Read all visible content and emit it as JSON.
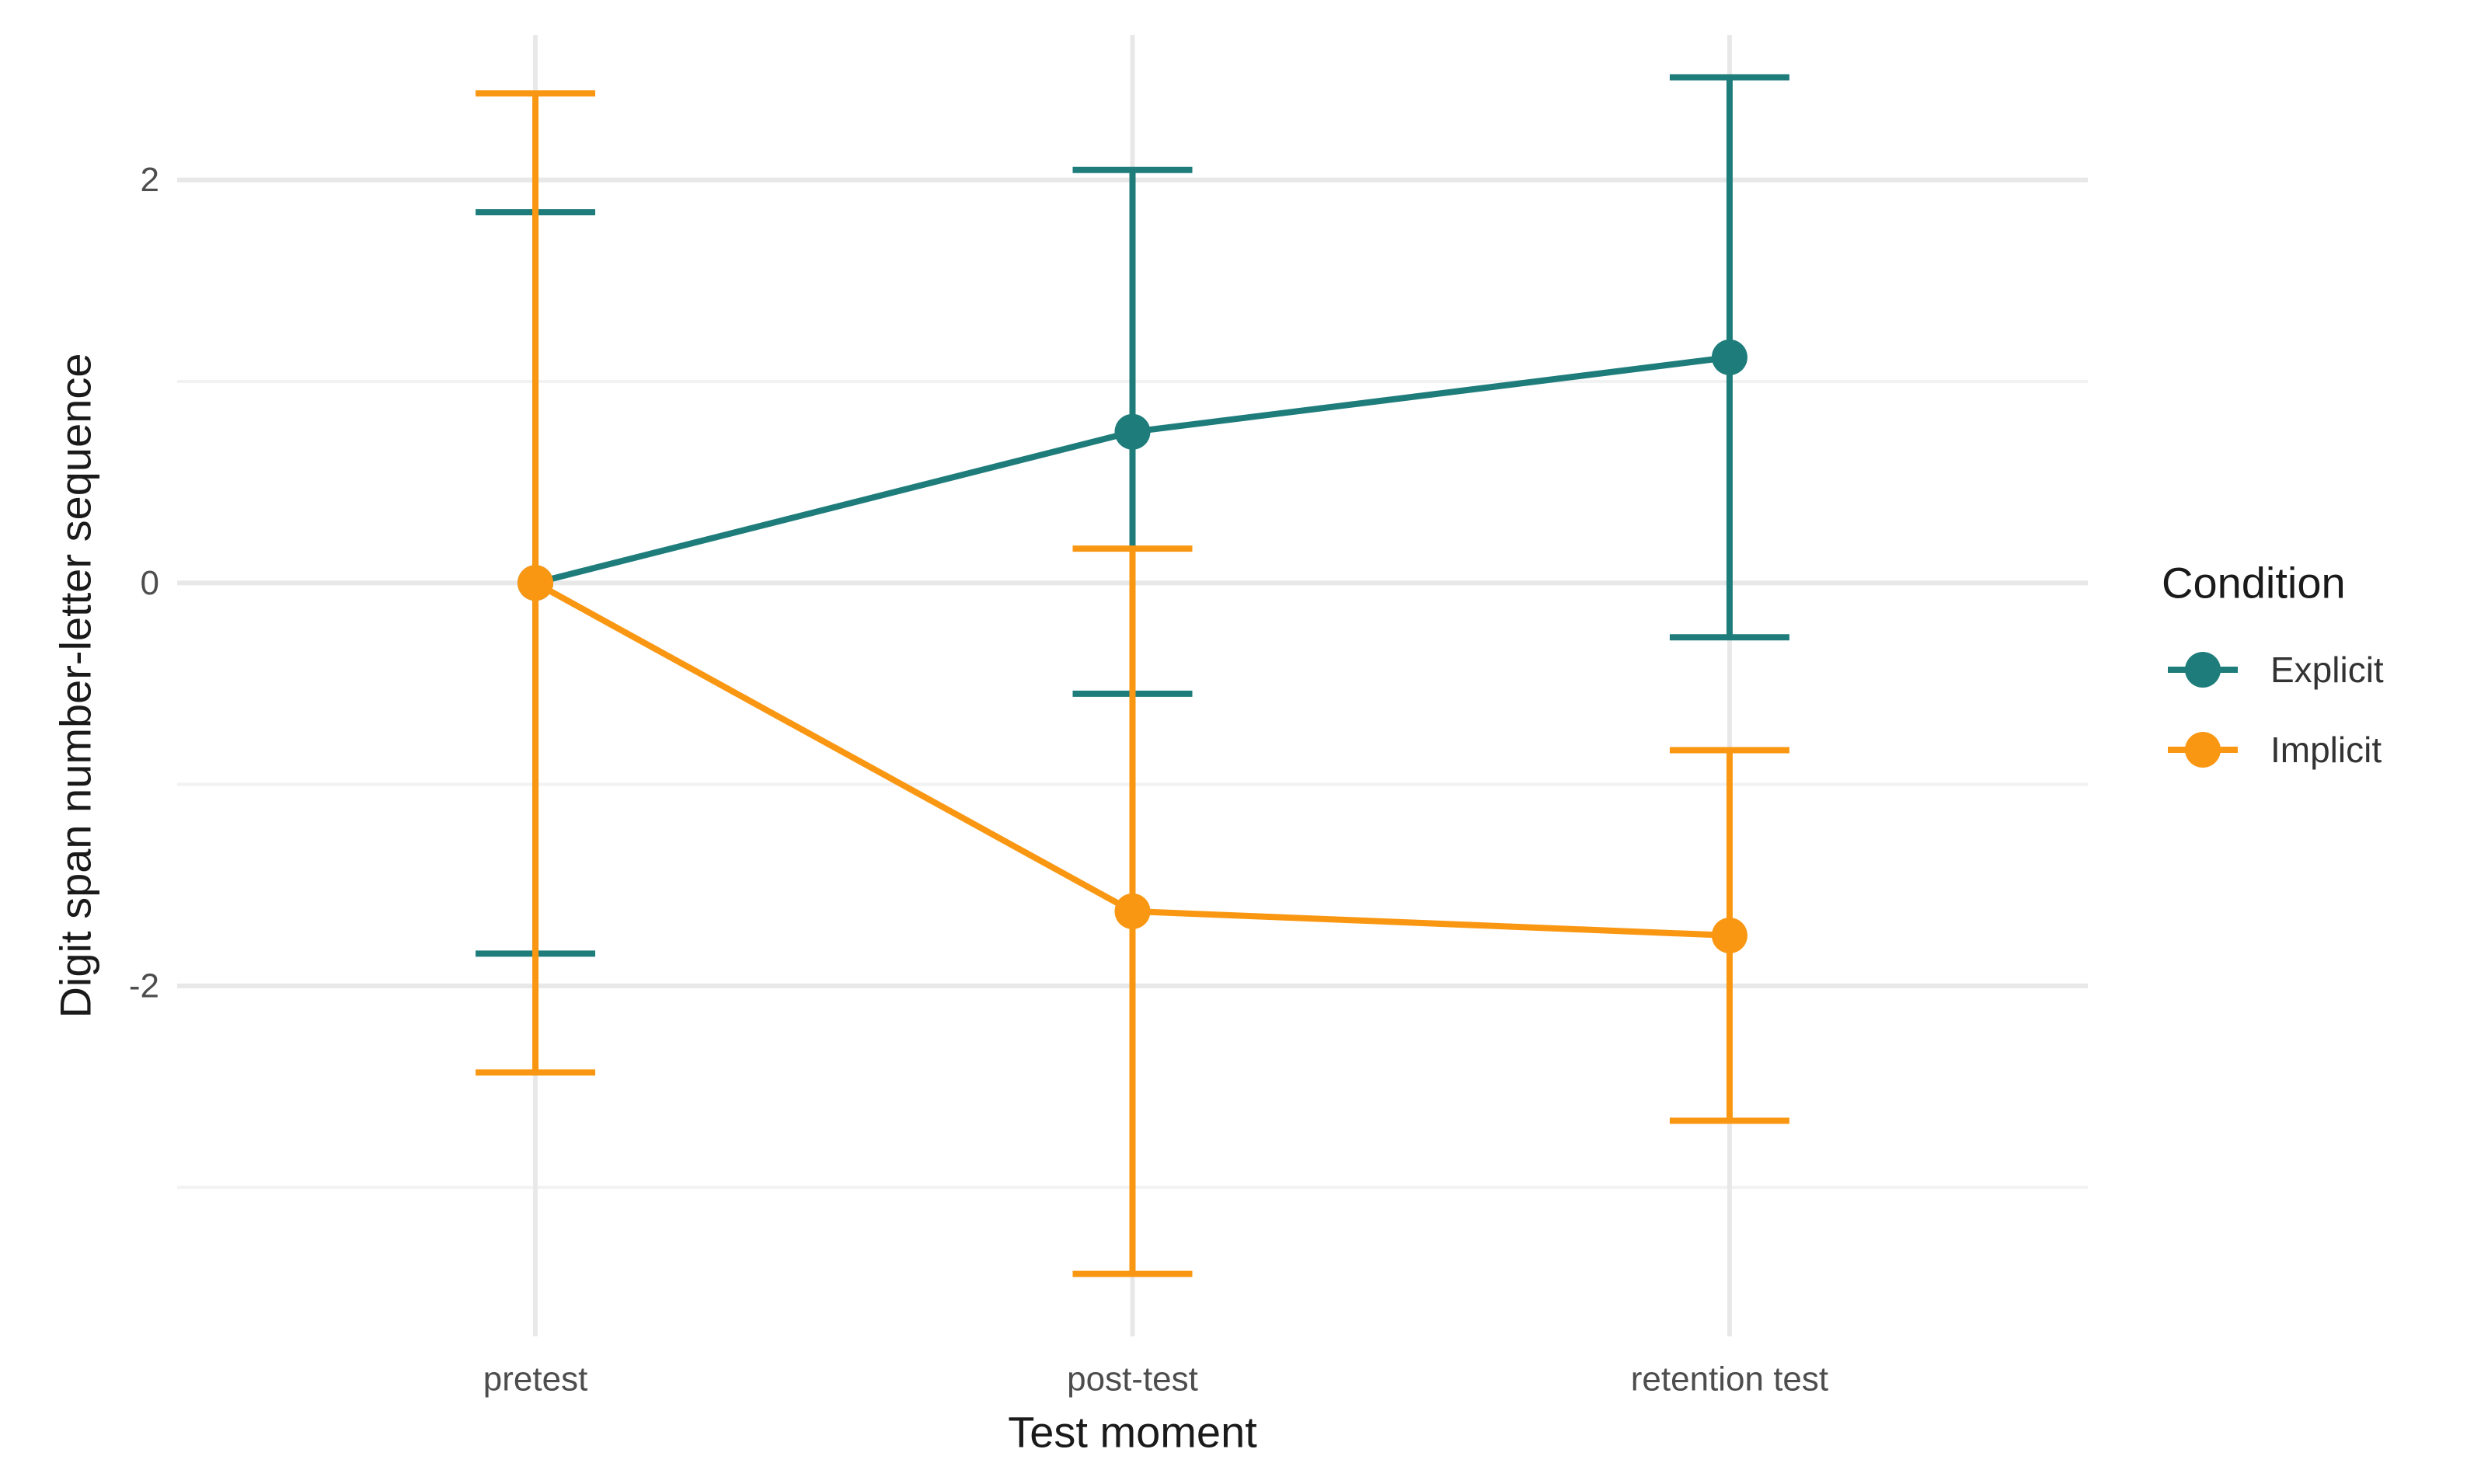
{
  "figure": {
    "background": "#FFFFFF"
  },
  "chart_data": {
    "type": "line",
    "title": "",
    "xlabel": "Test moment",
    "ylabel": "Digit span number-letter sequence",
    "categories": [
      "pretest",
      "post-test",
      "retention test"
    ],
    "series": [
      {
        "name": "Explicit",
        "color": "#1E7D7B",
        "values": [
          0,
          0.75,
          1.12
        ],
        "error_low": [
          -1.84,
          -0.55,
          -0.27
        ],
        "error_high": [
          1.84,
          2.05,
          2.51
        ]
      },
      {
        "name": "Implicit",
        "color": "#FA9712",
        "values": [
          0,
          -1.63,
          -1.75
        ],
        "error_low": [
          -2.43,
          -3.43,
          -2.67
        ],
        "error_high": [
          2.43,
          0.17,
          -0.83
        ]
      }
    ],
    "y_major_ticks": [
      {
        "value": 2,
        "label": "2"
      },
      {
        "value": 0,
        "label": "0"
      },
      {
        "value": -2,
        "label": "-2"
      }
    ],
    "y_minor_ticks": [
      1,
      -1,
      -3
    ],
    "ylim": [
      -3.74,
      2.72
    ],
    "grid": "horizontal majors+minors, vertical at categories",
    "legend": {
      "title": "Condition",
      "position": "right",
      "entries": [
        "Explicit",
        "Implicit"
      ]
    },
    "style_colors": {
      "grid_major": "#E8E8E8",
      "grid_minor": "#F2F2F2",
      "tick_label": "#4D4D4D",
      "axis_title": "#1A1A1A",
      "legend_text": "#333333"
    }
  }
}
